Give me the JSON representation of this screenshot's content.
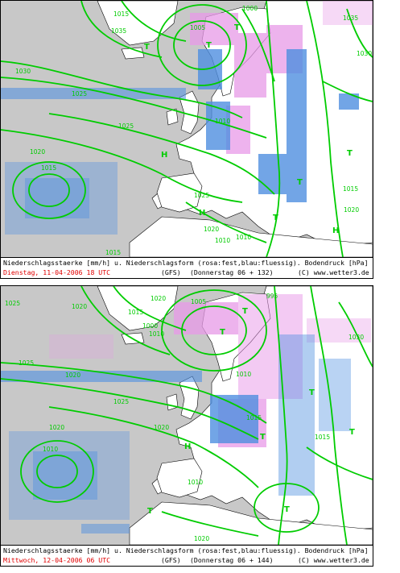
{
  "legend_title": "Niederschlagsstaerke [mm/h] u. Niederschlagsform (rosa:fest,blau:fluessig). Bodendruck [hPa]",
  "model": "(GFS)",
  "copyright": "(C) www.wetter3.de",
  "colors": {
    "snow": "#e89ae8",
    "rain": "#4f8fe0",
    "isobar": "#00cc00",
    "land": "#ffffff",
    "sea": "#c8c8c8",
    "date": "#e00000"
  },
  "panels": [
    {
      "date_label": "Dienstag, 11-04-2006  18 UTC",
      "run_label": "(Donnerstag 06 + 132)",
      "pressure_centers": [
        {
          "type": "H",
          "name": "high-pressure-label"
        },
        {
          "type": "H",
          "name": "high-pressure-label"
        },
        {
          "type": "H",
          "name": "high-pressure-label"
        },
        {
          "type": "T",
          "name": "low-pressure-label"
        },
        {
          "type": "T",
          "name": "low-pressure-label"
        },
        {
          "type": "T",
          "name": "low-pressure-label"
        },
        {
          "type": "T",
          "name": "low-pressure-label"
        },
        {
          "type": "T",
          "name": "low-pressure-label"
        },
        {
          "type": "T",
          "name": "low-pressure-label"
        }
      ],
      "isobar_labels": [
        "1035",
        "1030",
        "1025",
        "1025",
        "1020",
        "1020",
        "1015",
        "1015",
        "1010",
        "1010",
        "1005",
        "1000",
        "1015",
        "1015",
        "1020",
        "1010",
        "1025",
        "1030",
        "1035"
      ]
    },
    {
      "date_label": "Mittwoch, 12-04-2006  06 UTC",
      "run_label": "(Donnerstag 06 + 144)",
      "pressure_centers": [
        {
          "type": "H",
          "name": "high-pressure-label"
        },
        {
          "type": "T",
          "name": "low-pressure-label"
        },
        {
          "type": "T",
          "name": "low-pressure-label"
        },
        {
          "type": "T",
          "name": "low-pressure-label"
        },
        {
          "type": "T",
          "name": "low-pressure-label"
        },
        {
          "type": "T",
          "name": "low-pressure-label"
        },
        {
          "type": "T",
          "name": "low-pressure-label"
        },
        {
          "type": "T",
          "name": "low-pressure-label"
        }
      ],
      "isobar_labels": [
        "1025",
        "1020",
        "1020",
        "1015",
        "1010",
        "1010",
        "1025",
        "1020",
        "1015",
        "1015",
        "1010",
        "1010",
        "1005",
        "995",
        "1000",
        "1025",
        "1020",
        "1020",
        "1020",
        "1030"
      ]
    }
  ]
}
